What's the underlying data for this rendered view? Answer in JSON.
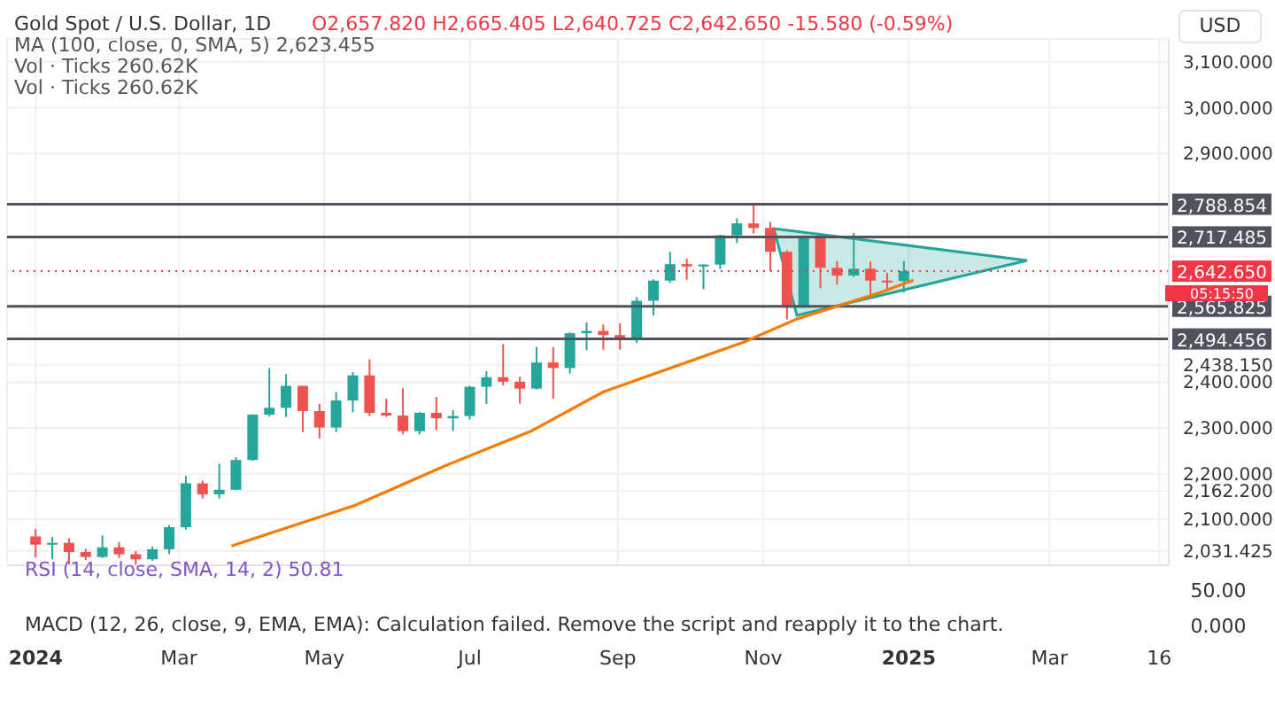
{
  "chart_data": {
    "type": "candlestick",
    "title": "Gold Spot / U.S. Dollar, 1D",
    "subtitle": "O2,657.820 H2,665.405 L2,640.725 C2,642.650 -15.580 (-0.59%)",
    "annotations": [
      "MA (100, close, 0, SMA, 5) 2,623.455",
      "Vol · Ticks 260.62K",
      "Vol · Ticks 260.62K",
      "05:15:50",
      "RSI (14, close, SMA, 14, 2) 50.81",
      "50.00",
      "MACD (12, 26, close, 9, EMA, EMA): Calculation failed. Remove the script and reapply it to the chart.",
      "0.000",
      "USD"
    ],
    "series": [
      {
        "x": [
          "2024-01-01",
          "2024-01-08",
          "2024-01-15",
          "2024-01-22",
          "2024-01-29",
          "2024-02-05",
          "2024-02-12",
          "2024-02-19",
          "2024-02-26",
          "2024-03-04",
          "2024-03-11",
          "2024-03-18",
          "2024-03-25",
          "2024-04-01",
          "2024-04-08",
          "2024-04-15",
          "2024-04-22",
          "2024-04-29",
          "2024-05-06",
          "2024-05-13",
          "2024-05-20",
          "2024-05-27",
          "2024-06-03",
          "2024-06-10",
          "2024-06-17",
          "2024-06-24",
          "2024-07-01",
          "2024-07-08",
          "2024-07-15",
          "2024-07-22",
          "2024-07-29",
          "2024-08-05",
          "2024-08-12",
          "2024-08-19",
          "2024-08-26",
          "2024-09-02",
          "2024-09-09",
          "2024-09-16",
          "2024-09-23",
          "2024-09-30",
          "2024-10-07",
          "2024-10-14",
          "2024-10-21",
          "2024-10-28",
          "2024-11-04",
          "2024-11-11",
          "2024-11-18",
          "2024-11-25",
          "2024-12-02",
          "2024-12-09",
          "2024-12-16",
          "2024-12-23",
          "2024-12-30"
        ],
        "ohlc": [
          [
            2063,
            2079,
            2017,
            2045
          ],
          [
            2045,
            2062,
            2013,
            2049
          ],
          [
            2049,
            2059,
            2002,
            2029
          ],
          [
            2029,
            2036,
            2011,
            2018
          ],
          [
            2018,
            2065,
            2016,
            2039
          ],
          [
            2039,
            2051,
            2016,
            2024
          ],
          [
            2024,
            2031,
            2002,
            2013
          ],
          [
            2013,
            2041,
            2010,
            2035
          ],
          [
            2035,
            2088,
            2024,
            2083
          ],
          [
            2083,
            2195,
            2078,
            2179
          ],
          [
            2179,
            2185,
            2146,
            2155
          ],
          [
            2155,
            2222,
            2146,
            2165
          ],
          [
            2165,
            2236,
            2164,
            2230
          ],
          [
            2230,
            2330,
            2228,
            2329
          ],
          [
            2329,
            2431,
            2325,
            2344
          ],
          [
            2344,
            2417,
            2324,
            2392
          ],
          [
            2392,
            2392,
            2291,
            2337
          ],
          [
            2337,
            2353,
            2277,
            2301
          ],
          [
            2301,
            2378,
            2291,
            2360
          ],
          [
            2360,
            2422,
            2334,
            2415
          ],
          [
            2415,
            2450,
            2326,
            2333
          ],
          [
            2333,
            2364,
            2324,
            2327
          ],
          [
            2327,
            2387,
            2286,
            2293
          ],
          [
            2293,
            2335,
            2286,
            2333
          ],
          [
            2333,
            2368,
            2295,
            2321
          ],
          [
            2321,
            2339,
            2293,
            2326
          ],
          [
            2326,
            2392,
            2319,
            2390
          ],
          [
            2390,
            2424,
            2352,
            2411
          ],
          [
            2411,
            2483,
            2393,
            2401
          ],
          [
            2401,
            2412,
            2353,
            2386
          ],
          [
            2386,
            2477,
            2384,
            2443
          ],
          [
            2443,
            2477,
            2364,
            2431
          ],
          [
            2431,
            2509,
            2419,
            2507
          ],
          [
            2507,
            2531,
            2470,
            2512
          ],
          [
            2512,
            2526,
            2471,
            2503
          ],
          [
            2503,
            2529,
            2471,
            2497
          ],
          [
            2497,
            2586,
            2486,
            2578
          ],
          [
            2578,
            2625,
            2546,
            2622
          ],
          [
            2622,
            2685,
            2617,
            2658
          ],
          [
            2658,
            2670,
            2624,
            2653
          ],
          [
            2653,
            2658,
            2603,
            2657
          ],
          [
            2657,
            2722,
            2647,
            2721
          ],
          [
            2721,
            2758,
            2704,
            2747
          ],
          [
            2747,
            2790,
            2725,
            2737
          ],
          [
            2737,
            2750,
            2643,
            2685
          ],
          [
            2685,
            2688,
            2537,
            2563
          ],
          [
            2563,
            2721,
            2563,
            2716
          ],
          [
            2716,
            2722,
            2605,
            2650
          ],
          [
            2650,
            2665,
            2613,
            2633
          ],
          [
            2633,
            2726,
            2630,
            2648
          ],
          [
            2648,
            2664,
            2583,
            2622
          ],
          [
            2622,
            2639,
            2599,
            2621
          ],
          [
            2621,
            2665,
            2596,
            2643
          ]
        ],
        "colors": [
          "#ef5350",
          "#26a69a",
          "#ef5350",
          "#ef5350",
          "#26a69a",
          "#ef5350",
          "#ef5350",
          "#26a69a",
          "#26a69a",
          "#26a69a",
          "#ef5350",
          "#26a69a",
          "#26a69a",
          "#26a69a",
          "#26a69a",
          "#26a69a",
          "#ef5350",
          "#ef5350",
          "#26a69a",
          "#26a69a",
          "#ef5350",
          "#ef5350",
          "#ef5350",
          "#26a69a",
          "#ef5350",
          "#26a69a",
          "#26a69a",
          "#26a69a",
          "#ef5350",
          "#ef5350",
          "#26a69a",
          "#ef5350",
          "#26a69a",
          "#26a69a",
          "#ef5350",
          "#ef5350",
          "#26a69a",
          "#26a69a",
          "#26a69a",
          "#ef5350",
          "#26a69a",
          "#26a69a",
          "#26a69a",
          "#ef5350",
          "#ef5350",
          "#ef5350",
          "#26a69a",
          "#ef5350",
          "#ef5350",
          "#26a69a",
          "#ef5350",
          "#ef5350",
          "#26a69a"
        ]
      },
      {
        "type": "line",
        "color": "#f57c00",
        "x": [
          "2024-03-23",
          "2024-05-14",
          "2024-06-20",
          "2024-07-27",
          "2024-08-26",
          "2024-10-24",
          "2024-11-15",
          "2024-12-20",
          "2025-01-03"
        ],
        "values": [
          2042,
          2131,
          2216,
          2294,
          2379,
          2488,
          2538,
          2596,
          2623
        ]
      }
    ],
    "xlim": [
      "2023-12-20",
      "2025-04-20"
    ],
    "xticks": [
      {
        "value": "2024-01-01",
        "label": "2024"
      },
      {
        "value": "2024-03-01",
        "label": "Mar"
      },
      {
        "value": "2024-05-01",
        "label": "May"
      },
      {
        "value": "2024-07-01",
        "label": "Jul"
      },
      {
        "value": "2024-09-01",
        "label": "Sep"
      },
      {
        "value": "2024-11-01",
        "label": "Nov"
      },
      {
        "value": "2025-01-01",
        "label": "2025"
      },
      {
        "value": "2025-03-01",
        "label": "Mar"
      },
      {
        "value": "2025-04-16",
        "label": "16"
      }
    ],
    "ylim": [
      2000,
      3150
    ],
    "yticks": [
      {
        "value": 2031.425,
        "label": "2,031.425"
      },
      {
        "value": 2100,
        "label": "2,100.000"
      },
      {
        "value": 2162.2,
        "label": "2,162.200"
      },
      {
        "value": 2200,
        "label": "2,200.000"
      },
      {
        "value": 2300,
        "label": "2,300.000"
      },
      {
        "value": 2400,
        "label": "2,400.000"
      },
      {
        "value": 2438.15,
        "label": "2,438.150"
      },
      {
        "value": 2900,
        "label": "2,900.000"
      },
      {
        "value": 3000,
        "label": "3,000.000"
      },
      {
        "value": 3100,
        "label": "3,100.000"
      }
    ],
    "ref_lines": [
      {
        "axis": "y",
        "value": 2788.854,
        "label": "2,788.854",
        "color": "#50535e",
        "line_style": "solid"
      },
      {
        "axis": "y",
        "value": 2717.485,
        "label": "2,717.485",
        "color": "#50535e",
        "line_style": "solid"
      },
      {
        "axis": "y",
        "value": 2642.65,
        "label": "2,642.650",
        "color": "#f23645",
        "line_style": "dotted"
      },
      {
        "axis": "y",
        "value": 2565.825,
        "label": "2,565.825",
        "color": "#50535e",
        "line_style": "solid"
      },
      {
        "axis": "y",
        "value": 2494.456,
        "label": "2,494.456",
        "color": "#50535e",
        "line_style": "solid"
      }
    ],
    "grid": true
  }
}
